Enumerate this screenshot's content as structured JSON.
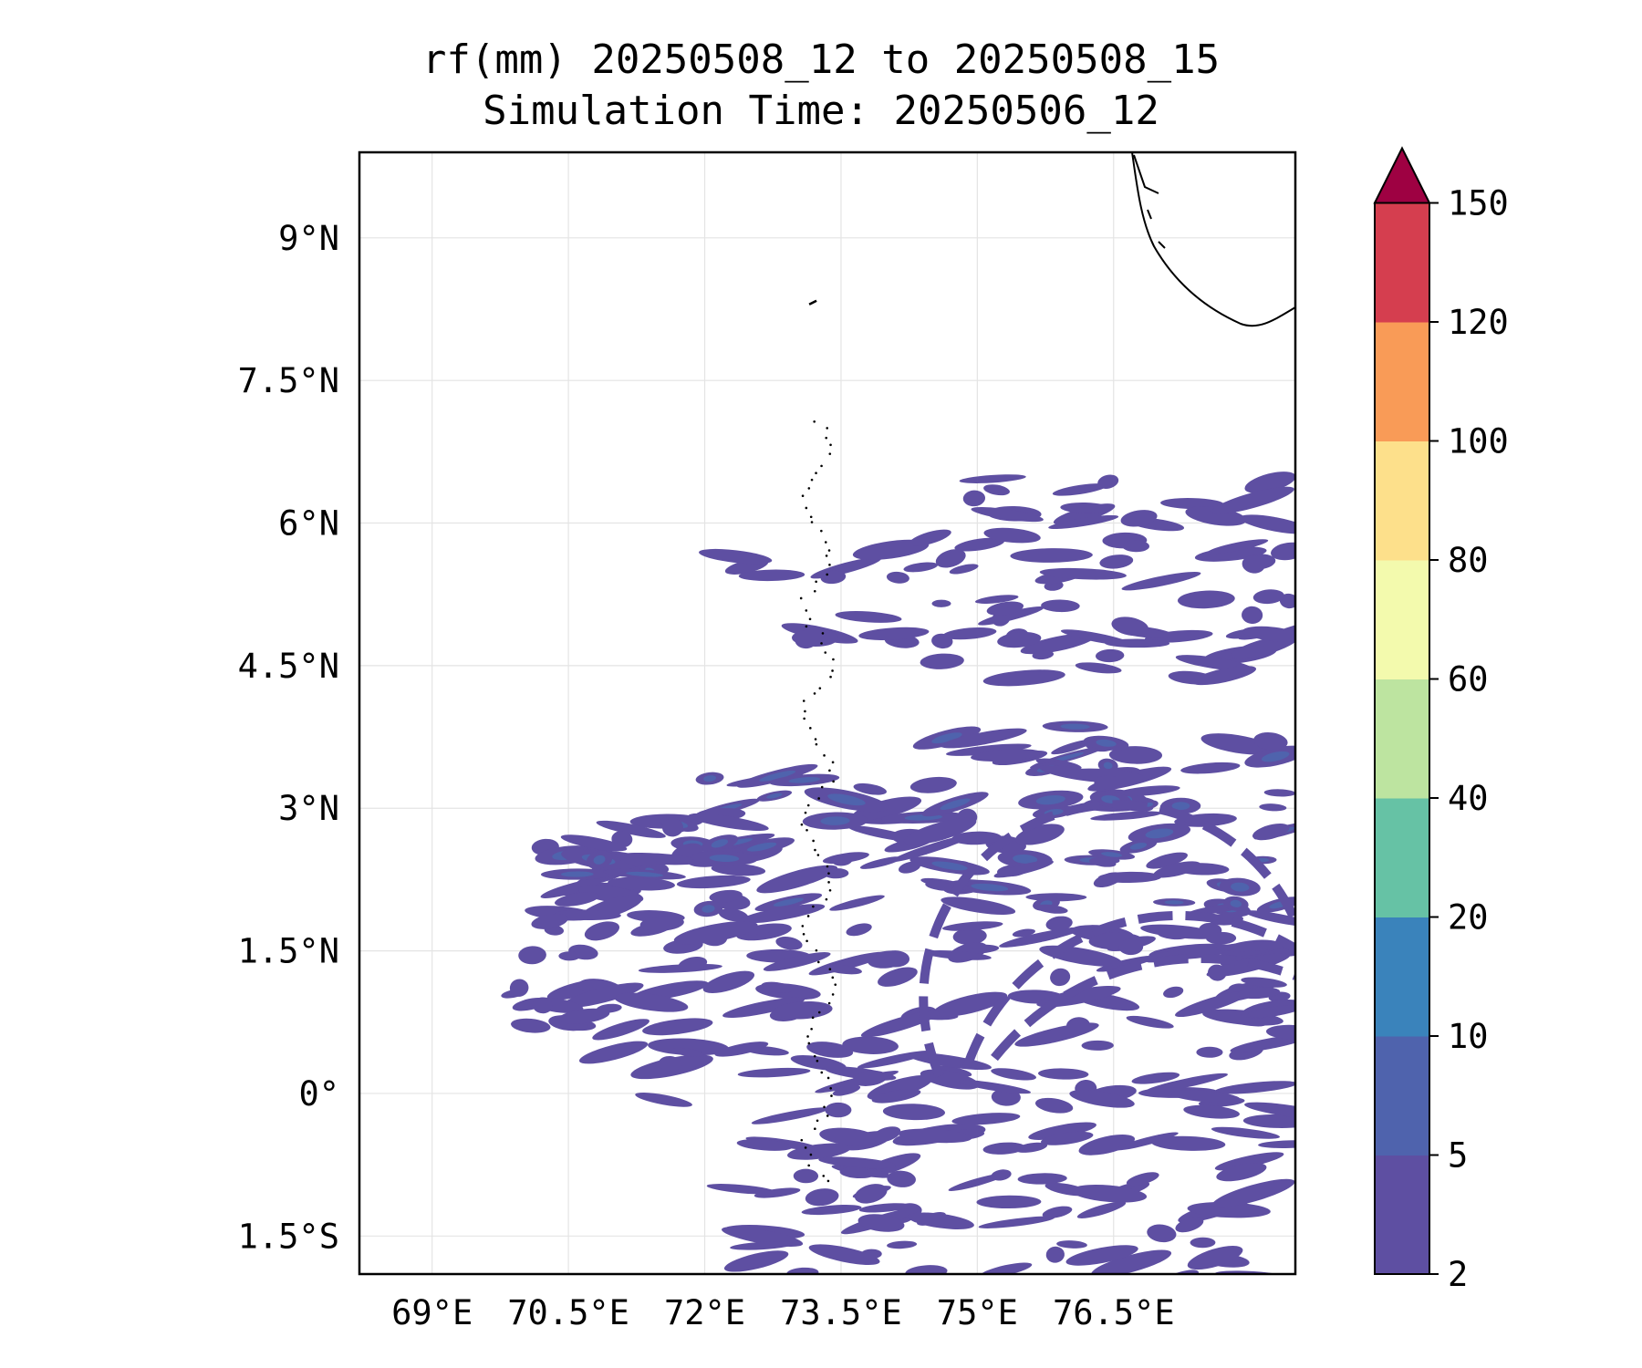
{
  "title": {
    "line1": "rf(mm) 20250508_12 to 20250508_15",
    "line2": "Simulation Time: 20250506_12"
  },
  "map": {
    "lon_range": [
      68.2,
      78.5
    ],
    "lat_range": [
      -1.9,
      9.9
    ],
    "lon_ticks": [
      {
        "value": 69.0,
        "label": "69°E"
      },
      {
        "value": 70.5,
        "label": "70.5°E"
      },
      {
        "value": 72.0,
        "label": "72°E"
      },
      {
        "value": 73.5,
        "label": "73.5°E"
      },
      {
        "value": 75.0,
        "label": "75°E"
      },
      {
        "value": 76.5,
        "label": "76.5°E"
      }
    ],
    "lat_ticks": [
      {
        "value": 9.0,
        "label": "9°N"
      },
      {
        "value": 7.5,
        "label": "7.5°N"
      },
      {
        "value": 6.0,
        "label": "6°N"
      },
      {
        "value": 4.5,
        "label": "4.5°N"
      },
      {
        "value": 3.0,
        "label": "3°N"
      },
      {
        "value": 1.5,
        "label": "1.5°N"
      },
      {
        "value": 0.0,
        "label": "0°"
      },
      {
        "value": -1.5,
        "label": "1.5°S"
      }
    ],
    "grid": true,
    "coastline": "india-southern-tip",
    "island_chain": "maldives"
  },
  "colorbar": {
    "levels": [
      "2",
      "5",
      "10",
      "20",
      "40",
      "60",
      "80",
      "100",
      "120",
      "150"
    ],
    "colors": [
      "#5e4fa2",
      "#4f63ad",
      "#3a83bb",
      "#66c2a5",
      "#bde4a0",
      "#f3faad",
      "#fde08b",
      "#f99b57",
      "#d53e4f"
    ],
    "extend_color": "#9e0142",
    "extend": "max"
  },
  "rain_bands": [
    {
      "lat": 6.2,
      "lon_start": 74.5,
      "lon_end": 78.5,
      "density": 0.5,
      "intensity": 1
    },
    {
      "lat": 5.6,
      "lon_start": 72.3,
      "lon_end": 78.5,
      "density": 0.55,
      "intensity": 1
    },
    {
      "lat": 5.0,
      "lon_start": 73.0,
      "lon_end": 78.5,
      "density": 0.6,
      "intensity": 1
    },
    {
      "lat": 4.6,
      "lon_start": 74.5,
      "lon_end": 78.5,
      "density": 0.45,
      "intensity": 1
    },
    {
      "lat": 3.6,
      "lon_start": 74.6,
      "lon_end": 78.5,
      "density": 0.55,
      "intensity": 2
    },
    {
      "lat": 3.1,
      "lon_start": 71.8,
      "lon_end": 78.5,
      "density": 0.65,
      "intensity": 2
    },
    {
      "lat": 2.6,
      "lon_start": 70.0,
      "lon_end": 78.5,
      "density": 0.75,
      "intensity": 2
    },
    {
      "lat": 2.2,
      "lon_start": 70.5,
      "lon_end": 78.5,
      "density": 0.8,
      "intensity": 2
    },
    {
      "lat": 1.7,
      "lon_start": 70.0,
      "lon_end": 78.5,
      "density": 0.7,
      "intensity": 1
    },
    {
      "lat": 1.2,
      "lon_start": 69.8,
      "lon_end": 78.5,
      "density": 0.6,
      "intensity": 1
    },
    {
      "lat": 0.7,
      "lon_start": 70.0,
      "lon_end": 78.5,
      "density": 0.55,
      "intensity": 1
    },
    {
      "lat": 0.2,
      "lon_start": 71.5,
      "lon_end": 78.5,
      "density": 0.5,
      "intensity": 1
    },
    {
      "lat": -0.3,
      "lon_start": 72.5,
      "lon_end": 78.5,
      "density": 0.55,
      "intensity": 1
    },
    {
      "lat": -0.8,
      "lon_start": 72.2,
      "lon_end": 78.5,
      "density": 0.5,
      "intensity": 1
    },
    {
      "lat": -1.3,
      "lon_start": 72.5,
      "lon_end": 78.5,
      "density": 0.45,
      "intensity": 1
    },
    {
      "lat": -1.7,
      "lon_start": 72.2,
      "lon_end": 78.2,
      "density": 0.35,
      "intensity": 1
    }
  ]
}
